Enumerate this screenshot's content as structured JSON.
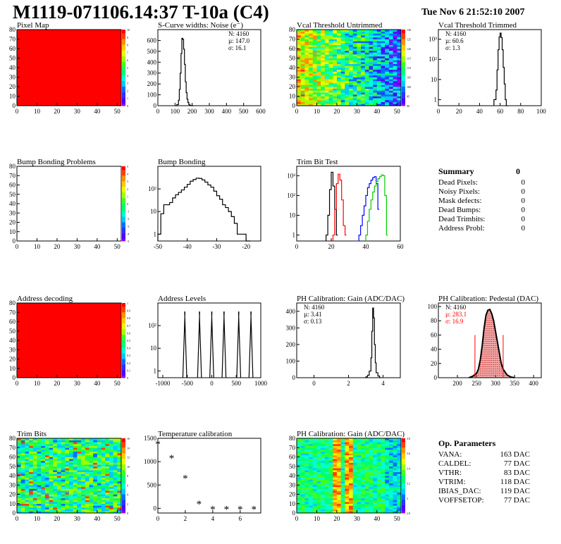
{
  "header": {
    "title": "M1119-071106.14:37 T-10a (C4)",
    "date": "Tue Nov  6 21:52:10 2007"
  },
  "colors": {
    "palette": [
      "#ff0000",
      "#ff4000",
      "#ff9000",
      "#ffcc00",
      "#e6ff00",
      "#a0ff00",
      "#40ff20",
      "#00ff70",
      "#00ffd0",
      "#00c8ff",
      "#0070ff",
      "#3030ff",
      "#5000ff",
      "#9000ff"
    ],
    "hist_line": "#000000",
    "pedestal_fill": "#cc0000",
    "trim_red": "#ff0000",
    "trim_blue": "#0000ff",
    "trim_green": "#00cc00"
  },
  "chart_data": [
    {
      "id": "pixel_map",
      "type": "heatmap",
      "title": "Pixel Map",
      "pattern": "solid_red",
      "xlim": [
        0,
        52
      ],
      "ylim": [
        0,
        80
      ],
      "xticks": [
        "0",
        "10",
        "20",
        "30",
        "40",
        "50"
      ],
      "yticks": [
        "0",
        "10",
        "20",
        "30",
        "40",
        "50",
        "60",
        "70",
        "80"
      ],
      "zlim": [
        0,
        10
      ],
      "zticks": [
        "0",
        "1",
        "2",
        "3",
        "4",
        "5",
        "6",
        "7",
        "8",
        "9",
        "10"
      ]
    },
    {
      "id": "scurve_noise",
      "type": "line",
      "title": "S-Curve widths: Noise (e⁻)",
      "xlim": [
        0,
        600
      ],
      "ylim": [
        0,
        700
      ],
      "log": false,
      "xticks": [
        "0",
        "100",
        "200",
        "300",
        "400",
        "500",
        "600"
      ],
      "yticks": [
        "0",
        "100",
        "200",
        "300",
        "400",
        "500",
        "600"
      ],
      "x": [
        100,
        110,
        120,
        125,
        130,
        135,
        140,
        145,
        150,
        155,
        160,
        165,
        170,
        175,
        180,
        185,
        190,
        200
      ],
      "y": [
        0,
        10,
        50,
        150,
        300,
        480,
        620,
        610,
        520,
        380,
        220,
        120,
        60,
        30,
        12,
        5,
        2,
        0
      ],
      "stats": [
        "N: 4160",
        "µ: 147.0",
        "σ: 16.1"
      ]
    },
    {
      "id": "vcal_untrimmed",
      "type": "heatmap",
      "title": "Vcal Threshold Untrimmed",
      "pattern": "noise_gradient",
      "xlim": [
        0,
        52
      ],
      "ylim": [
        0,
        80
      ],
      "xticks": [
        "0",
        "10",
        "20",
        "30",
        "40",
        "50"
      ],
      "yticks": [
        "0",
        "10",
        "20",
        "30",
        "40",
        "50",
        "60",
        "70",
        "80"
      ],
      "zlim": [
        90,
        130
      ],
      "zticks": [
        "90",
        "95",
        "100",
        "105",
        "110",
        "115",
        "120",
        "125",
        "130"
      ]
    },
    {
      "id": "vcal_trimmed",
      "type": "line",
      "title": "Vcal Threshold Trimmed",
      "xlim": [
        0,
        100
      ],
      "ylim": [
        0.5,
        3000
      ],
      "log": true,
      "xticks": [
        "0",
        "20",
        "40",
        "60",
        "80",
        "100"
      ],
      "yticks": [
        "1",
        "10",
        "10²",
        "10³"
      ],
      "x": [
        54,
        56,
        57,
        58,
        59,
        60,
        61,
        62,
        63,
        64,
        65,
        66
      ],
      "y": [
        1,
        3,
        30,
        300,
        1300,
        2000,
        1200,
        300,
        40,
        6,
        1,
        0
      ],
      "stats": [
        "N: 4160",
        "µ: 60.6",
        "σ: 1.3"
      ]
    },
    {
      "id": "bump_problems",
      "type": "heatmap",
      "title": "Bump Bonding Problems",
      "pattern": "empty",
      "xlim": [
        0,
        52
      ],
      "ylim": [
        0,
        80
      ],
      "xticks": [
        "0",
        "10",
        "20",
        "30",
        "40",
        "50"
      ],
      "yticks": [
        "0",
        "10",
        "20",
        "30",
        "40",
        "50",
        "60",
        "70",
        "80"
      ],
      "zlim": [
        -5,
        5
      ],
      "zticks": [
        "-5",
        "-4",
        "-3",
        "-2",
        "-1",
        "0",
        "1",
        "2",
        "3",
        "4",
        "5"
      ]
    },
    {
      "id": "bump_bonding",
      "type": "line",
      "title": "Bump Bonding",
      "xlim": [
        -50,
        -15
      ],
      "ylim": [
        0.5,
        1000
      ],
      "log": true,
      "xticks": [
        "-50",
        "-40",
        "-30",
        "-20"
      ],
      "yticks": [
        "1",
        "10",
        "10²"
      ],
      "x": [
        -50,
        -49,
        -48,
        -47,
        -46,
        -45,
        -44,
        -43,
        -42,
        -41,
        -40,
        -39,
        -38,
        -37,
        -36,
        -35,
        -34,
        -33,
        -32,
        -31,
        -30,
        -29,
        -28,
        -27,
        -26,
        -25,
        -24,
        -23,
        -22,
        -21,
        -20,
        -19
      ],
      "y": [
        1,
        8,
        20,
        20,
        25,
        40,
        55,
        70,
        90,
        120,
        160,
        220,
        260,
        300,
        290,
        250,
        200,
        150,
        120,
        80,
        50,
        35,
        20,
        15,
        10,
        6,
        3,
        1,
        1,
        1,
        0,
        0
      ],
      "stats": []
    },
    {
      "id": "trim_bit_test",
      "type": "line",
      "title": "Trim Bit Test",
      "xlim": [
        0,
        60
      ],
      "ylim": [
        0.5,
        3000
      ],
      "log": true,
      "xticks": [
        "0",
        "20",
        "40",
        "60"
      ],
      "yticks": [
        "1",
        "10",
        "10²",
        "10³"
      ],
      "series_list": [
        {
          "color_key": "hist_line",
          "x": [
            17,
            18,
            19,
            20,
            21,
            22,
            23
          ],
          "y": [
            1,
            10,
            200,
            1500,
            300,
            20,
            1
          ]
        },
        {
          "color_key": "trim_red",
          "x": [
            21,
            22,
            23,
            24,
            25,
            26,
            27,
            28
          ],
          "y": [
            1,
            20,
            400,
            1200,
            600,
            60,
            3,
            1
          ]
        },
        {
          "color_key": "trim_blue",
          "x": [
            36,
            37,
            38,
            39,
            40,
            41,
            42,
            43,
            44,
            45,
            46,
            47
          ],
          "y": [
            1,
            3,
            10,
            30,
            100,
            250,
            400,
            600,
            800,
            900,
            400,
            20
          ]
        },
        {
          "color_key": "trim_green",
          "x": [
            40,
            41,
            42,
            43,
            44,
            45,
            46,
            47,
            48,
            49,
            50,
            51,
            52
          ],
          "y": [
            1,
            5,
            20,
            60,
            150,
            300,
            500,
            700,
            900,
            1100,
            1000,
            100,
            1
          ]
        }
      ],
      "stats": []
    },
    {
      "id": "address_decoding",
      "type": "heatmap",
      "title": "Address decoding",
      "pattern": "solid_red",
      "xlim": [
        0,
        52
      ],
      "ylim": [
        0,
        80
      ],
      "xticks": [
        "0",
        "10",
        "20",
        "30",
        "40",
        "50"
      ],
      "yticks": [
        "0",
        "10",
        "20",
        "30",
        "40",
        "50",
        "60",
        "70",
        "80"
      ],
      "zlim": [
        0,
        1
      ],
      "zticks": [
        "0",
        "0.1",
        "0.2",
        "0.3",
        "0.4",
        "0.5",
        "0.6",
        "0.7",
        "0.8",
        "0.9",
        "1"
      ]
    },
    {
      "id": "address_levels",
      "type": "line",
      "title": "Address Levels",
      "xlim": [
        -1100,
        1000
      ],
      "ylim": [
        0.5,
        1000
      ],
      "log": true,
      "xticks": [
        "-1000",
        "-500",
        "0",
        "500",
        "1000"
      ],
      "yticks": [
        "1",
        "10",
        "10²"
      ],
      "peaks": [
        -550,
        -250,
        0,
        250,
        550,
        800
      ],
      "peak_height": 400,
      "stats": []
    },
    {
      "id": "ph_gain",
      "type": "line",
      "title": "PH Calibration: Gain (ADC/DAC)",
      "xlim": [
        -1,
        5
      ],
      "ylim": [
        0,
        450
      ],
      "log": false,
      "xticks": [
        "0",
        "2",
        "4"
      ],
      "yticks": [
        "0",
        "100",
        "200",
        "300",
        "400"
      ],
      "x": [
        3.0,
        3.1,
        3.2,
        3.3,
        3.35,
        3.4,
        3.45,
        3.5,
        3.55,
        3.6,
        3.7,
        3.8
      ],
      "y": [
        5,
        15,
        40,
        120,
        280,
        420,
        360,
        200,
        90,
        30,
        10,
        0
      ],
      "stats": [
        "N: 4160",
        "µ: 3.41",
        "σ: 0.13"
      ]
    },
    {
      "id": "ph_pedestal",
      "type": "area",
      "title": "PH Calibration: Pedestal (DAC)",
      "xlim": [
        150,
        420
      ],
      "ylim": [
        0,
        105
      ],
      "log": false,
      "xticks": [
        "200",
        "250",
        "300",
        "350",
        "400"
      ],
      "yticks": [
        "0",
        "20",
        "40",
        "60",
        "80",
        "100"
      ],
      "x": [
        230,
        240,
        250,
        255,
        260,
        265,
        270,
        275,
        280,
        285,
        290,
        295,
        300,
        305,
        310,
        315,
        320,
        325,
        330,
        340,
        350
      ],
      "y": [
        0,
        2,
        6,
        12,
        25,
        45,
        70,
        88,
        95,
        96,
        90,
        80,
        65,
        50,
        35,
        20,
        12,
        8,
        4,
        1,
        0
      ],
      "markers": [
        246,
        320
      ],
      "stats": [
        "N: 4160",
        "µ: 283.1",
        "σ: 16.9"
      ]
    },
    {
      "id": "trim_bits",
      "type": "heatmap",
      "title": "Trim Bits",
      "pattern": "noise_uniform",
      "xlim": [
        0,
        52
      ],
      "ylim": [
        0,
        80
      ],
      "xticks": [
        "0",
        "10",
        "20",
        "30",
        "40",
        "50"
      ],
      "yticks": [
        "0",
        "10",
        "20",
        "30",
        "40",
        "50",
        "60",
        "70",
        "80"
      ],
      "zlim": [
        0,
        16
      ],
      "zticks": [
        "0",
        "2",
        "4",
        "6",
        "8",
        "10",
        "12",
        "14",
        "16"
      ]
    },
    {
      "id": "temperature",
      "type": "scatter",
      "title": "Temperature calibration",
      "xlim": [
        0,
        7.5
      ],
      "ylim": [
        -100,
        1500
      ],
      "log": false,
      "xticks": [
        "0",
        "2",
        "4",
        "6"
      ],
      "yticks": [
        "0",
        "500",
        "1000",
        "1500"
      ],
      "x": [
        0,
        1,
        2,
        3,
        4,
        5,
        6,
        7
      ],
      "y": [
        1380,
        1080,
        650,
        100,
        -20,
        -20,
        -20,
        -20
      ],
      "stats": []
    },
    {
      "id": "ph_gain_map",
      "type": "heatmap",
      "title": "PH Calibration: Gain (ADC/DAC)",
      "pattern": "column_bands",
      "xlim": [
        0,
        52
      ],
      "ylim": [
        0,
        80
      ],
      "xticks": [
        "0",
        "10",
        "20",
        "30",
        "40",
        "50"
      ],
      "yticks": [
        "0",
        "10",
        "20",
        "30",
        "40",
        "50",
        "60",
        "70",
        "80"
      ],
      "zlim": [
        2.8,
        3.8
      ],
      "zticks": [
        "2.8",
        "3",
        "3.2",
        "3.4",
        "3.6",
        "3.8"
      ]
    }
  ],
  "summary": {
    "title": "Summary",
    "total": "0",
    "rows": [
      {
        "label": "Dead Pixels:",
        "value": "0"
      },
      {
        "label": "Noisy Pixels:",
        "value": "0"
      },
      {
        "label": "Mask defects:",
        "value": "0"
      },
      {
        "label": "Dead Bumps:",
        "value": "0"
      },
      {
        "label": "Dead Trimbits:",
        "value": "0"
      },
      {
        "label": "Address Probl:",
        "value": "0"
      }
    ]
  },
  "op_params": {
    "title": "Op. Parameters",
    "rows": [
      {
        "label": "VANA:",
        "value": "163 DAC"
      },
      {
        "label": "CALDEL:",
        "value": "77 DAC"
      },
      {
        "label": "VTHR:",
        "value": "83 DAC"
      },
      {
        "label": "VTRIM:",
        "value": "118 DAC"
      },
      {
        "label": "IBIAS_DAC:",
        "value": "119 DAC"
      },
      {
        "label": "VOFFSETOP:",
        "value": "77 DAC"
      }
    ]
  }
}
